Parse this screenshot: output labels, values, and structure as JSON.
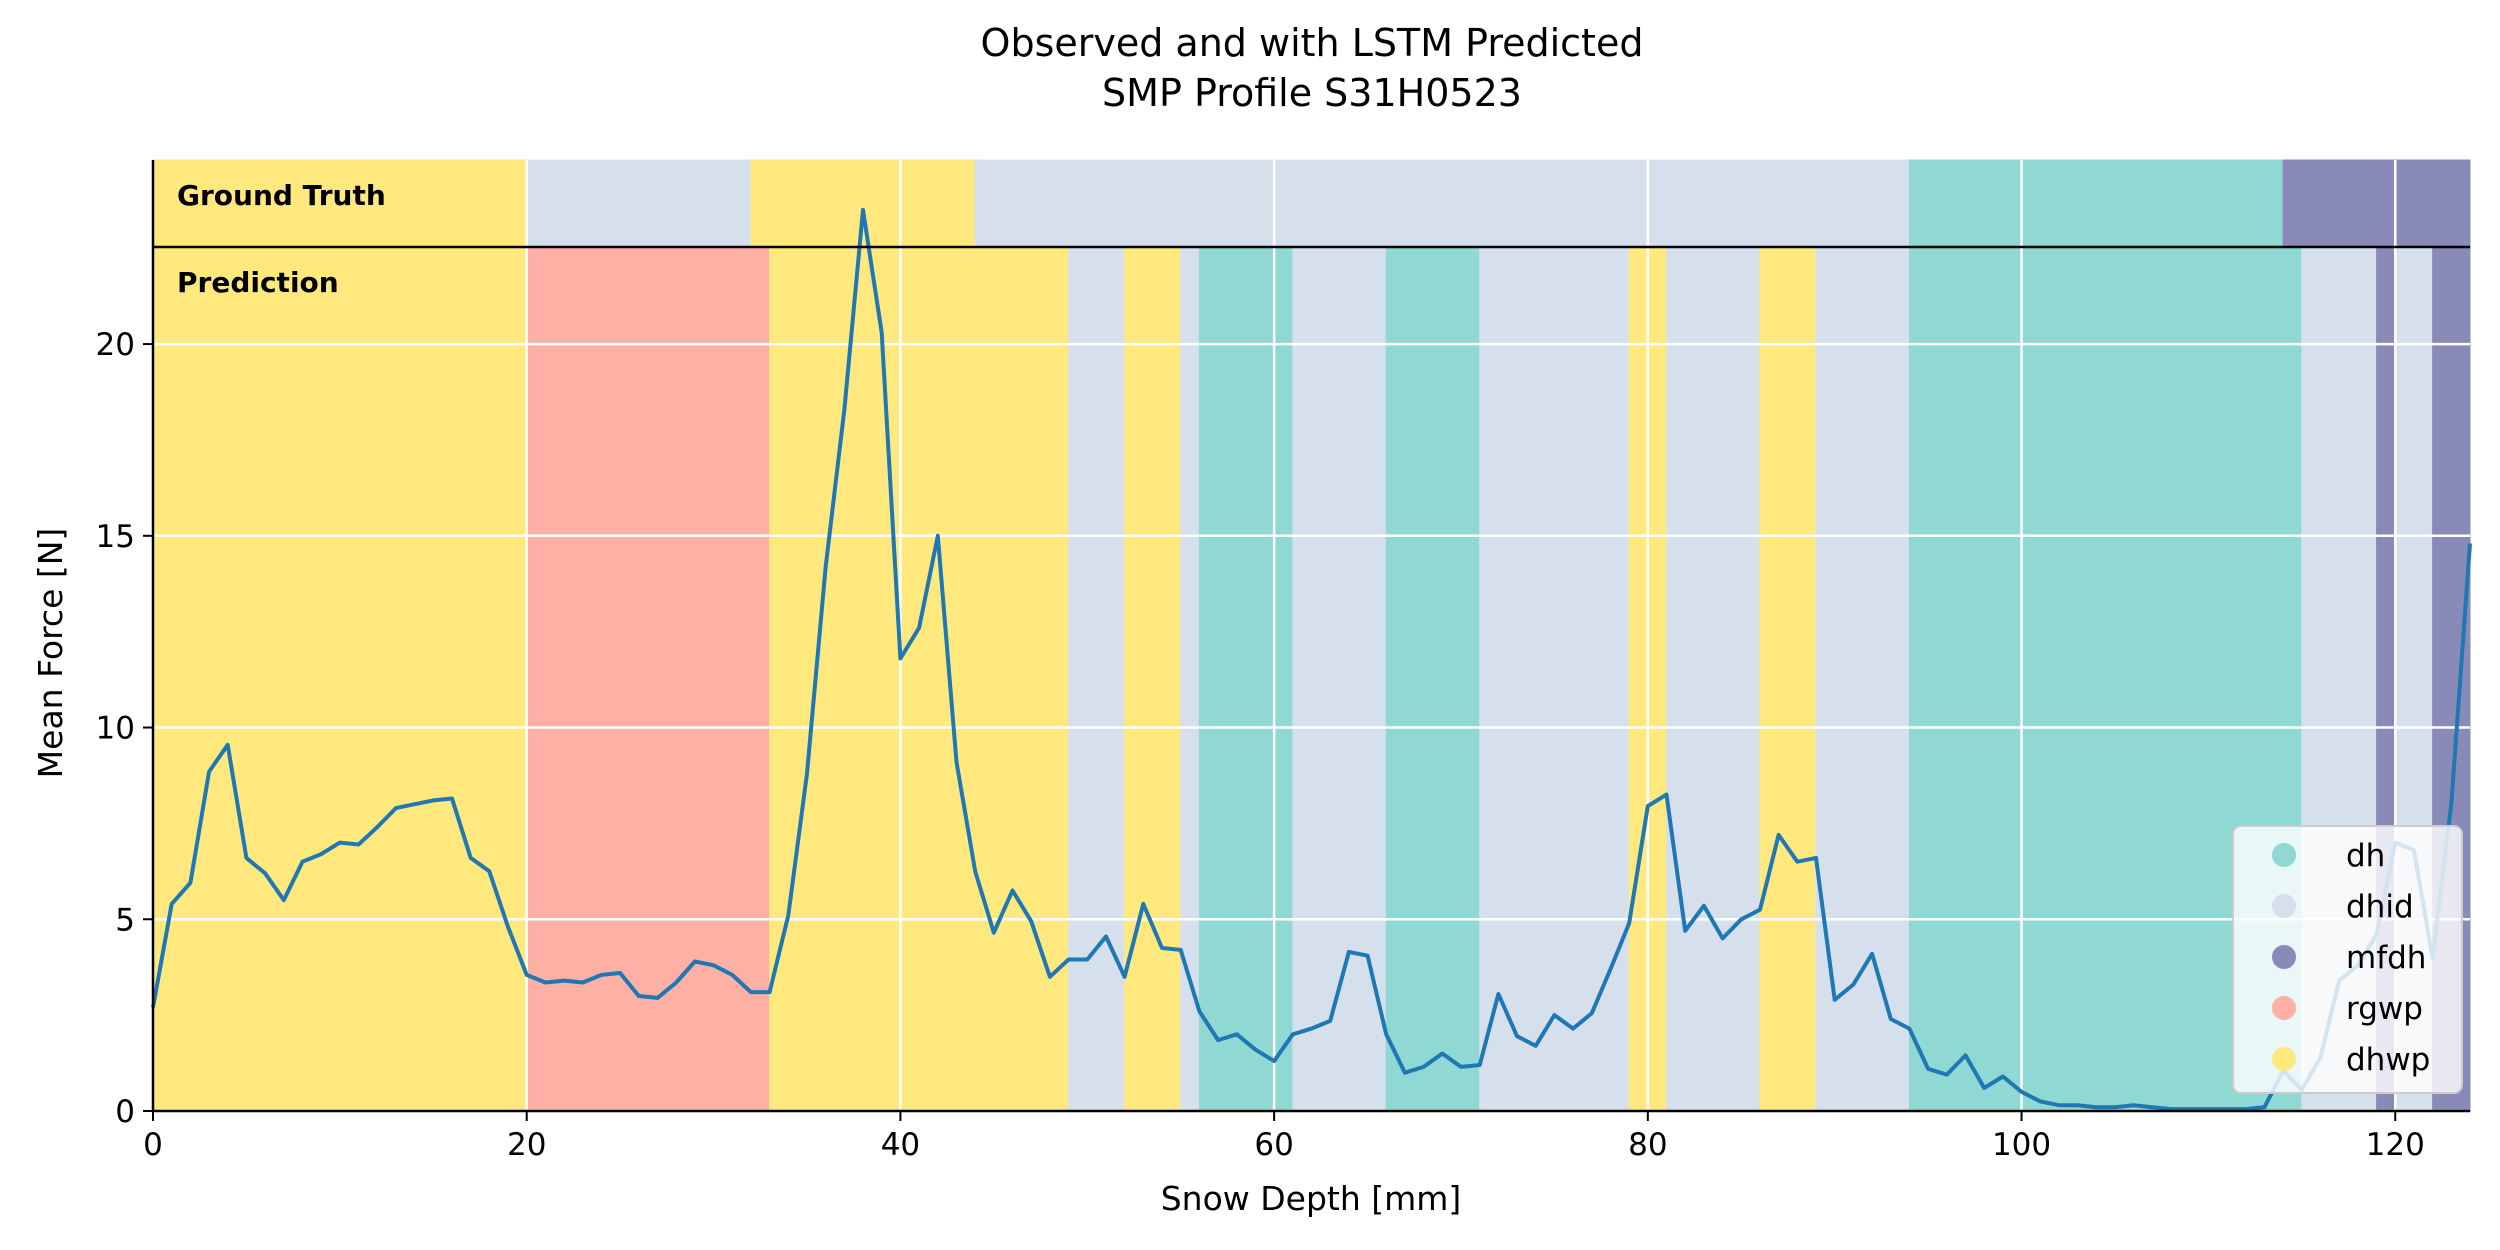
{
  "chart_data": {
    "type": "line",
    "title": "Observed and with LSTM Predicted",
    "subtitle": "SMP Profile S31H0523",
    "xlabel": "Snow Depth [mm]",
    "ylabel": "Mean Force [N]",
    "xlim": [
      0,
      124
    ],
    "ylim": [
      0,
      24.8
    ],
    "xticks": [
      0,
      20,
      40,
      60,
      80,
      100,
      120
    ],
    "yticks": [
      0,
      5,
      10,
      15,
      20
    ],
    "grid": true,
    "legend_position": "bottom-right",
    "band_labels": {
      "ground_truth": "Ground Truth",
      "prediction": "Prediction"
    },
    "classes": [
      {
        "name": "dh",
        "color": "#8fd8d3"
      },
      {
        "name": "dhid",
        "color": "#d6e0ec"
      },
      {
        "name": "mfdh",
        "color": "#8a8ab8"
      },
      {
        "name": "rgwp",
        "color": "#ffb0a5"
      },
      {
        "name": "dhwp",
        "color": "#ffe97f"
      }
    ],
    "ground_truth_segments": [
      {
        "start": 0,
        "end": 20,
        "label": "dhwp"
      },
      {
        "start": 20,
        "end": 32,
        "label": "dhid"
      },
      {
        "start": 32,
        "end": 44,
        "label": "dhwp"
      },
      {
        "start": 44,
        "end": 94,
        "label": "dhid"
      },
      {
        "start": 94,
        "end": 114,
        "label": "dh"
      },
      {
        "start": 114,
        "end": 124,
        "label": "mfdh"
      }
    ],
    "prediction_segments": [
      {
        "start": 0,
        "end": 20,
        "label": "dhwp"
      },
      {
        "start": 20,
        "end": 33,
        "label": "rgwp"
      },
      {
        "start": 33,
        "end": 49,
        "label": "dhwp"
      },
      {
        "start": 49,
        "end": 52,
        "label": "dhid"
      },
      {
        "start": 52,
        "end": 55,
        "label": "dhwp"
      },
      {
        "start": 55,
        "end": 56,
        "label": "dhid"
      },
      {
        "start": 56,
        "end": 61,
        "label": "dh"
      },
      {
        "start": 61,
        "end": 66,
        "label": "dhid"
      },
      {
        "start": 66,
        "end": 71,
        "label": "dh"
      },
      {
        "start": 71,
        "end": 79,
        "label": "dhid"
      },
      {
        "start": 79,
        "end": 81,
        "label": "dhwp"
      },
      {
        "start": 81,
        "end": 86,
        "label": "dhid"
      },
      {
        "start": 86,
        "end": 89,
        "label": "dhwp"
      },
      {
        "start": 89,
        "end": 94,
        "label": "dhid"
      },
      {
        "start": 94,
        "end": 115,
        "label": "dh"
      },
      {
        "start": 115,
        "end": 119,
        "label": "dhid"
      },
      {
        "start": 119,
        "end": 120,
        "label": "mfdh"
      },
      {
        "start": 120,
        "end": 122,
        "label": "dhid"
      },
      {
        "start": 122,
        "end": 124,
        "label": "mfdh"
      }
    ],
    "series": [
      {
        "color": "#1f77b4",
        "x": [
          0,
          1,
          2,
          3,
          4,
          5,
          6,
          7,
          8,
          9,
          10,
          11,
          12,
          13,
          14,
          15,
          16,
          17,
          18,
          19,
          20,
          21,
          22,
          23,
          24,
          25,
          26,
          27,
          28,
          29,
          30,
          31,
          32,
          33,
          34,
          35,
          36,
          37,
          38,
          39,
          40,
          41,
          42,
          43,
          44,
          45,
          46,
          47,
          48,
          49,
          50,
          51,
          52,
          53,
          54,
          55,
          56,
          57,
          58,
          59,
          60,
          61,
          62,
          63,
          64,
          65,
          66,
          67,
          68,
          69,
          70,
          71,
          72,
          73,
          74,
          75,
          76,
          77,
          78,
          79,
          80,
          81,
          82,
          83,
          84,
          85,
          86,
          87,
          88,
          89,
          90,
          91,
          92,
          93,
          94,
          95,
          96,
          97,
          98,
          99,
          100,
          101,
          102,
          103,
          104,
          105,
          106,
          107,
          108,
          109,
          110,
          111,
          112,
          113,
          114,
          115,
          116,
          117,
          118,
          119,
          120,
          121,
          122,
          123,
          124
        ],
        "values": [
          2.7,
          5.4,
          5.95,
          8.85,
          9.55,
          6.6,
          6.2,
          5.5,
          6.5,
          6.7,
          7.0,
          6.95,
          7.4,
          7.9,
          8.0,
          8.1,
          8.15,
          6.6,
          6.25,
          4.8,
          3.55,
          3.35,
          3.4,
          3.35,
          3.55,
          3.6,
          3.0,
          2.95,
          3.35,
          3.9,
          3.8,
          3.55,
          3.1,
          3.1,
          5.1,
          8.8,
          14.2,
          18.3,
          23.5,
          20.3,
          11.8,
          12.6,
          15.0,
          9.1,
          6.25,
          4.65,
          5.75,
          4.95,
          3.5,
          3.95,
          3.95,
          4.55,
          3.5,
          5.4,
          4.25,
          4.2,
          2.6,
          1.85,
          2.0,
          1.6,
          1.3,
          2.0,
          2.15,
          2.35,
          4.15,
          4.05,
          2.0,
          1.0,
          1.15,
          1.5,
          1.15,
          1.2,
          3.05,
          1.95,
          1.7,
          2.5,
          2.15,
          2.55,
          3.7,
          4.9,
          7.95,
          8.25,
          4.7,
          5.35,
          4.5,
          5.0,
          5.25,
          7.2,
          6.5,
          6.6,
          2.9,
          3.3,
          4.1,
          2.4,
          2.15,
          1.1,
          0.95,
          1.45,
          0.6,
          0.9,
          0.5,
          0.25,
          0.15,
          0.15,
          0.1,
          0.1,
          0.15,
          0.1,
          0.05,
          0.05,
          0.05,
          0.05,
          0.05,
          0.1,
          1.05,
          0.55,
          1.4,
          3.4,
          3.8,
          4.6,
          7.0,
          6.8,
          4.0,
          8.0,
          14.8
        ]
      }
    ]
  }
}
